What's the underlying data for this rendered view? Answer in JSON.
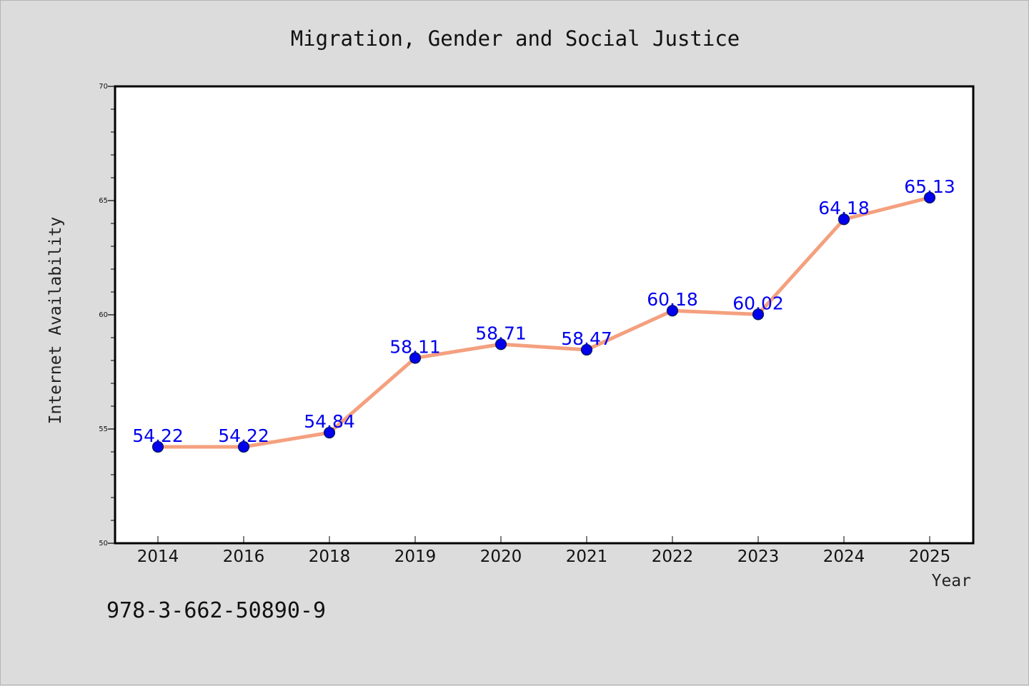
{
  "chart_data": {
    "type": "line",
    "title": "Migration, Gender and Social Justice",
    "xlabel": "Year",
    "ylabel": "Internet Availability",
    "categories": [
      "2014",
      "2016",
      "2018",
      "2019",
      "2020",
      "2021",
      "2022",
      "2023",
      "2024",
      "2025"
    ],
    "series": [
      {
        "values": [
          54.22,
          54.22,
          54.84,
          58.11,
          58.71,
          58.47,
          60.18,
          60.02,
          64.18,
          65.13
        ],
        "labels": [
          "54.22",
          "54.22",
          "54.84",
          "58.11",
          "58.71",
          "58.47",
          "60.18",
          "60.02",
          "64.18",
          "65.13"
        ]
      }
    ],
    "ylim": [
      50,
      70
    ],
    "yticks": [
      50,
      55,
      60,
      65,
      70
    ],
    "ytick_labels": [
      "50",
      "55",
      "60",
      "65",
      "70"
    ],
    "grid": false,
    "colors": {
      "line": "#f4a07f",
      "marker": "#0000ee",
      "marker_edge": "#001a4d",
      "data_label": "#0000ee",
      "plot_background": "#ffffff",
      "figure_background": "#dcdcdc"
    }
  },
  "footer": {
    "isbn": "978-3-662-50890-9"
  }
}
